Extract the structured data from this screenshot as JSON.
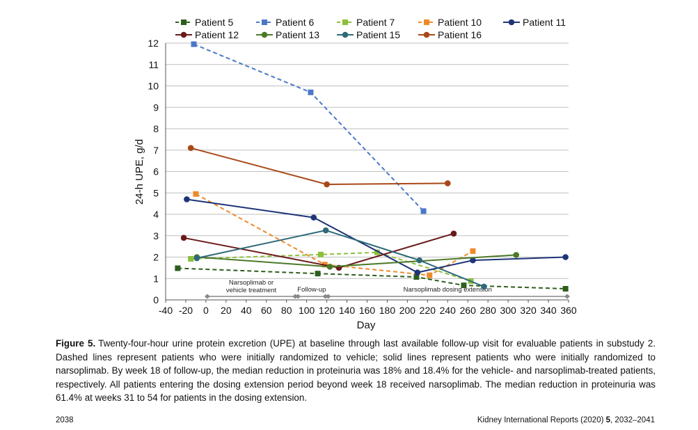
{
  "chart_data": {
    "type": "line",
    "xlabel": "Day",
    "ylabel": "24-h UPE, g/d",
    "xlim": [
      -40,
      360
    ],
    "ylim": [
      0,
      12
    ],
    "xticks": [
      -40,
      -20,
      0,
      20,
      40,
      60,
      80,
      100,
      120,
      140,
      160,
      180,
      200,
      220,
      240,
      260,
      280,
      300,
      320,
      340,
      360
    ],
    "yticks": [
      0,
      1,
      2,
      3,
      4,
      5,
      6,
      7,
      8,
      9,
      10,
      11,
      12
    ],
    "grid": "horizontal",
    "legend_position": "top",
    "series": [
      {
        "name": "Patient 5",
        "color": "#2e5e1e",
        "style": "dashed",
        "marker": "square",
        "x": [
          -28,
          111,
          209,
          256,
          357
        ],
        "y": [
          1.48,
          1.23,
          1.07,
          0.68,
          0.52
        ]
      },
      {
        "name": "Patient 6",
        "color": "#4a78c8",
        "style": "dashed",
        "marker": "square",
        "x": [
          -12,
          104,
          216
        ],
        "y": [
          11.95,
          9.7,
          4.15
        ]
      },
      {
        "name": "Patient 7",
        "color": "#8cbf3c",
        "style": "dashed",
        "marker": "square",
        "x": [
          -15,
          114,
          170,
          263
        ],
        "y": [
          1.92,
          2.12,
          2.22,
          0.88
        ]
      },
      {
        "name": "Patient 10",
        "color": "#ee8a2a",
        "style": "dashed",
        "marker": "square",
        "x": [
          -10,
          118,
          222,
          265
        ],
        "y": [
          4.95,
          1.65,
          1.15,
          2.28
        ]
      },
      {
        "name": "Patient 11",
        "color": "#1f3478",
        "style": "solid",
        "marker": "circle",
        "x": [
          -19,
          107,
          210,
          265,
          357
        ],
        "y": [
          4.7,
          3.85,
          1.28,
          1.85,
          2.0
        ]
      },
      {
        "name": "Patient 12",
        "color": "#6a1a1a",
        "style": "solid",
        "marker": "circle",
        "x": [
          -22,
          132,
          246
        ],
        "y": [
          2.9,
          1.5,
          3.1
        ]
      },
      {
        "name": "Patient 13",
        "color": "#4c7a28",
        "style": "solid",
        "marker": "circle",
        "x": [
          -9,
          123,
          308
        ],
        "y": [
          2.0,
          1.55,
          2.1
        ]
      },
      {
        "name": "Patient 15",
        "color": "#2e6a78",
        "style": "solid",
        "marker": "circle",
        "x": [
          -9,
          119,
          212,
          276
        ],
        "y": [
          1.95,
          3.25,
          1.85,
          0.62
        ]
      },
      {
        "name": "Patient 16",
        "color": "#a84818",
        "style": "solid",
        "marker": "circle",
        "x": [
          -15,
          120,
          240
        ],
        "y": [
          7.1,
          5.4,
          5.45
        ]
      }
    ],
    "periods": [
      {
        "label": "Narsoplimab or vehicle treatment",
        "start": 0,
        "end": 90
      },
      {
        "label": "Follow-up",
        "start": 90,
        "end": 120
      },
      {
        "label": "Narsoplimab dosing extension",
        "start": 120,
        "end": 360
      }
    ]
  },
  "caption": {
    "label": "Figure 5.",
    "text": "Twenty-four-hour urine protein excretion (UPE) at baseline through last available follow-up visit for evaluable patients in substudy 2. Dashed lines represent patients who were initially randomized to vehicle; solid lines represent patients who were initially randomized to narsoplimab. By week 18 of follow-up, the median reduction in proteinuria was 18% and 18.4% for the vehicle- and narsoplimab-treated patients, respectively. All patients entering the dosing extension period beyond week 18 received narsoplimab. The median reduction in proteinuria was 61.4% at weeks 31 to 54 for patients in the dosing extension."
  },
  "footer": {
    "page_number": "2038",
    "journal": "Kidney International Reports (2020)",
    "volume": "5",
    "pages": ", 2032–2041"
  }
}
